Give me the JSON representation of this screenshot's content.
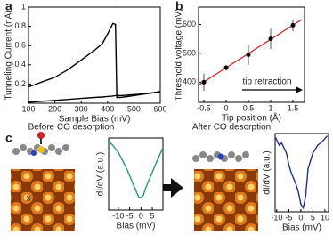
{
  "chart_data": [
    {
      "type": "line",
      "panel": "a",
      "y_label": "Tunneling Current (nA)",
      "x_label": "Sample Bias (mV)",
      "x": [
        100,
        150,
        200,
        250,
        300,
        350,
        380,
        400,
        420,
        430,
        435,
        450,
        500,
        550,
        600
      ],
      "series": [
        {
          "color": "#000000",
          "values": [
            0.17,
            0.22,
            0.27,
            0.35,
            0.45,
            0.55,
            0.62,
            0.72,
            0.83,
            0.82,
            0.06,
            0.06,
            0.08,
            0.1,
            0.12
          ]
        },
        {
          "color": "#000000",
          "values": [
            0.01,
            0.02,
            0.03,
            0.04,
            0.05,
            0.06,
            0.065,
            0.07,
            0.075,
            0.08,
            0.08,
            0.08,
            0.09,
            0.1,
            0.12
          ]
        }
      ],
      "xlim": [
        100,
        600
      ],
      "xticks": [
        100,
        200,
        300,
        400,
        500,
        600
      ],
      "ylim": [
        0,
        1
      ],
      "yticks": [
        0.2,
        0.4,
        0.6,
        0.8,
        1
      ]
    },
    {
      "type": "scatter",
      "panel": "b",
      "y_label": "Threshold voltage (mV)",
      "x_label": "Tip position (Å)",
      "annotation": "tip retraction",
      "x": [
        -0.5,
        0,
        0.5,
        1,
        1.5
      ],
      "series": [
        {
          "color": "#000000",
          "values": [
            400,
            450,
            495,
            550,
            597
          ],
          "errors": [
            30,
            10,
            35,
            35,
            20
          ]
        }
      ],
      "fit": {
        "color": "#d62728",
        "x": [
          -0.6,
          1.7
        ],
        "values": [
          391,
          617
        ]
      },
      "xlim": [
        -0.62,
        1.76
      ],
      "xticks": [
        -0.5,
        0,
        0.5,
        1,
        1.5
      ],
      "ylim": [
        330,
        660
      ],
      "yticks": [
        400,
        500,
        600
      ]
    },
    {
      "type": "line",
      "panel": "c",
      "title": "Before CO desorption",
      "annotation": "x",
      "y_label": "dI/dV (a.u.)",
      "x_label": "Bias (mV)",
      "x": [
        -14,
        -12,
        -10,
        -8,
        -6,
        -4,
        -2,
        -1,
        0,
        1,
        2,
        4,
        6,
        8,
        9.5
      ],
      "series": [
        {
          "color": "#1a9a8a",
          "values": [
            0.95,
            0.88,
            0.8,
            0.68,
            0.55,
            0.4,
            0.25,
            0.18,
            0.17,
            0.2,
            0.3,
            0.45,
            0.6,
            0.75,
            0.85
          ]
        }
      ],
      "xlim": [
        -14.3,
        9.7
      ],
      "xticks": [
        -10,
        -5,
        0,
        5
      ],
      "ylim": [
        0,
        1
      ]
    },
    {
      "type": "line",
      "title": "After CO desorption",
      "y_label": "dI/dV (a.u.)",
      "x_label": "Bias (mV)",
      "x": [
        -10.5,
        -9,
        -8,
        -6,
        -5,
        -4,
        -2,
        -1,
        0,
        1,
        2,
        3,
        5,
        7,
        9,
        11
      ],
      "series": [
        {
          "color": "#1f2f8f",
          "values": [
            0.95,
            0.85,
            0.88,
            0.75,
            0.6,
            0.5,
            0.35,
            0.25,
            0.1,
            0.05,
            0.2,
            0.55,
            0.75,
            0.85,
            0.9,
            0.97
          ]
        }
      ],
      "xlim": [
        -10.7,
        11.5
      ],
      "xticks": [
        -10,
        -5,
        0,
        5,
        10
      ],
      "ylim": [
        0,
        1
      ]
    }
  ]
}
